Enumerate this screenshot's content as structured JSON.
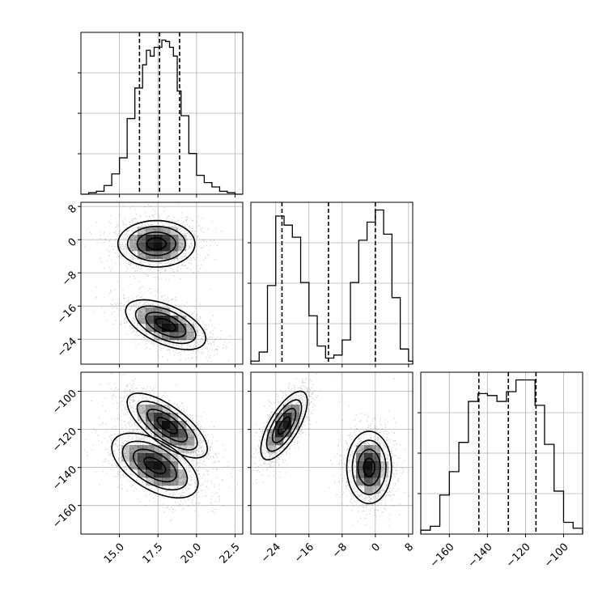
{
  "chart_data": {
    "type": "corner",
    "grid": true,
    "colors": {
      "line": "#000000",
      "grid": "#b0b0b0",
      "scatter": "#000000",
      "density": "#000000"
    },
    "parameters": [
      {
        "range": [
          12.5,
          23.0
        ],
        "ticks": [
          "15.0",
          "17.5",
          "20.0",
          "22.5"
        ],
        "tick_values": [
          15.0,
          17.5,
          20.0,
          22.5
        ],
        "quantiles": [
          16.3,
          17.6,
          18.9
        ]
      },
      {
        "range": [
          -30,
          9
        ],
        "ticks": [
          "8",
          "0",
          "−8",
          "−16",
          "−24"
        ],
        "tick_values": [
          8,
          0,
          -8,
          -16,
          -24
        ],
        "quantiles": [
          -22.5,
          -11.3,
          0.0
        ]
      },
      {
        "range": [
          -175,
          -90
        ],
        "ticks": [
          "−100",
          "−120",
          "−140",
          "−160"
        ],
        "tick_values": [
          -100,
          -120,
          -140,
          -160
        ],
        "quantiles": [
          -144.5,
          -129.0,
          -114.5
        ]
      }
    ],
    "histograms": [
      {
        "param": 0,
        "bins": [
          12.5,
          13.0,
          13.5,
          14.0,
          14.5,
          15.0,
          15.5,
          16.0,
          16.5,
          16.75,
          17.0,
          17.25,
          17.5,
          17.75,
          18.0,
          18.25,
          18.5,
          18.75,
          19.0,
          19.5,
          20.0,
          20.5,
          21.0,
          21.5,
          22.0,
          22.5,
          23.0
        ],
        "counts": [
          0,
          2,
          4,
          12,
          28,
          50,
          104,
          146,
          178,
          198,
          190,
          202,
          202,
          212,
          210,
          202,
          190,
          142,
          108,
          56,
          26,
          16,
          10,
          4,
          2,
          0
        ]
      },
      {
        "param": 1,
        "bins": [
          -30,
          -28,
          -26,
          -24,
          -22,
          -20,
          -18,
          -16,
          -14,
          -12,
          -10,
          -8,
          -6,
          -4,
          -2,
          0,
          2,
          4,
          6,
          8,
          9
        ],
        "counts": [
          1,
          4,
          26,
          49,
          46,
          42,
          27,
          16,
          6,
          2,
          3,
          8,
          27,
          41,
          47,
          51,
          43,
          22,
          5,
          1
        ]
      },
      {
        "param": 2,
        "bins": [
          -175,
          -170,
          -165,
          -160,
          -155,
          -150,
          -145,
          -140,
          -135,
          -130,
          -125,
          -120,
          -115,
          -110,
          -105,
          -100,
          -95,
          -90
        ],
        "counts": [
          2,
          4,
          20,
          32,
          47,
          68,
          72,
          71,
          68,
          73,
          79,
          79,
          66,
          46,
          22,
          6,
          3
        ]
      }
    ],
    "densities": [
      {
        "x": 0,
        "y": 1,
        "clusters": [
          {
            "mean": [
              17.4,
              -1.0
            ],
            "sd": [
              1.25,
              2.8
            ],
            "rho": 0.0,
            "weight": 0.5
          },
          {
            "mean": [
              18.0,
              -20.5
            ],
            "sd": [
              1.3,
              3.0
            ],
            "rho": -0.55,
            "weight": 0.5
          }
        ]
      },
      {
        "x": 0,
        "y": 2,
        "clusters": [
          {
            "mean": [
              18.1,
              -118.0
            ],
            "sd": [
              1.3,
              8.5
            ],
            "rho": -0.72,
            "weight": 0.5
          },
          {
            "mean": [
              17.3,
              -139.0
            ],
            "sd": [
              1.4,
              8.5
            ],
            "rho": -0.55,
            "weight": 0.5
          }
        ]
      },
      {
        "x": 1,
        "y": 2,
        "clusters": [
          {
            "mean": [
              -22.0,
              -118.0
            ],
            "sd": [
              2.8,
              9.0
            ],
            "rho": 0.7,
            "weight": 0.5
          },
          {
            "mean": [
              -1.5,
              -140.0
            ],
            "sd": [
              2.7,
              9.5
            ],
            "rho": 0.0,
            "weight": 0.5
          }
        ]
      }
    ]
  }
}
